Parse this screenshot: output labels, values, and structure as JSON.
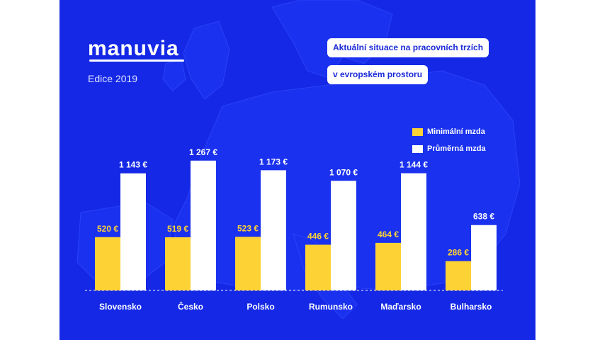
{
  "brand": {
    "logo_text": "manuvia",
    "edition": "Edice 2019"
  },
  "title": {
    "line1": "Aktuální situace na pracovních trzích",
    "line2": "v evropském prostoru"
  },
  "colors": {
    "background": "#1428e6",
    "min_series": "#fdd235",
    "avg_series": "#ffffff",
    "min_label": "#fdd235",
    "avg_label": "#ffffff"
  },
  "chart_data": {
    "type": "bar",
    "categories": [
      "Slovensko",
      "Česko",
      "Polsko",
      "Rumunsko",
      "Maďarsko",
      "Bulharsko"
    ],
    "series": [
      {
        "name": "Minimální mzda",
        "values": [
          520,
          519,
          523,
          446,
          464,
          286
        ],
        "labels": [
          "520 €",
          "519 €",
          "523 €",
          "446 €",
          "464 €",
          "286 €"
        ]
      },
      {
        "name": "Průměrná mzda",
        "values": [
          1143,
          1267,
          1173,
          1070,
          1144,
          638
        ],
        "labels": [
          "1 143 €",
          "1 267 €",
          "1 173 €",
          "1 070 €",
          "1 144 €",
          "638 €"
        ]
      }
    ],
    "ylim": [
      0,
      1300
    ],
    "grid": false,
    "legend_position": "top-right"
  }
}
